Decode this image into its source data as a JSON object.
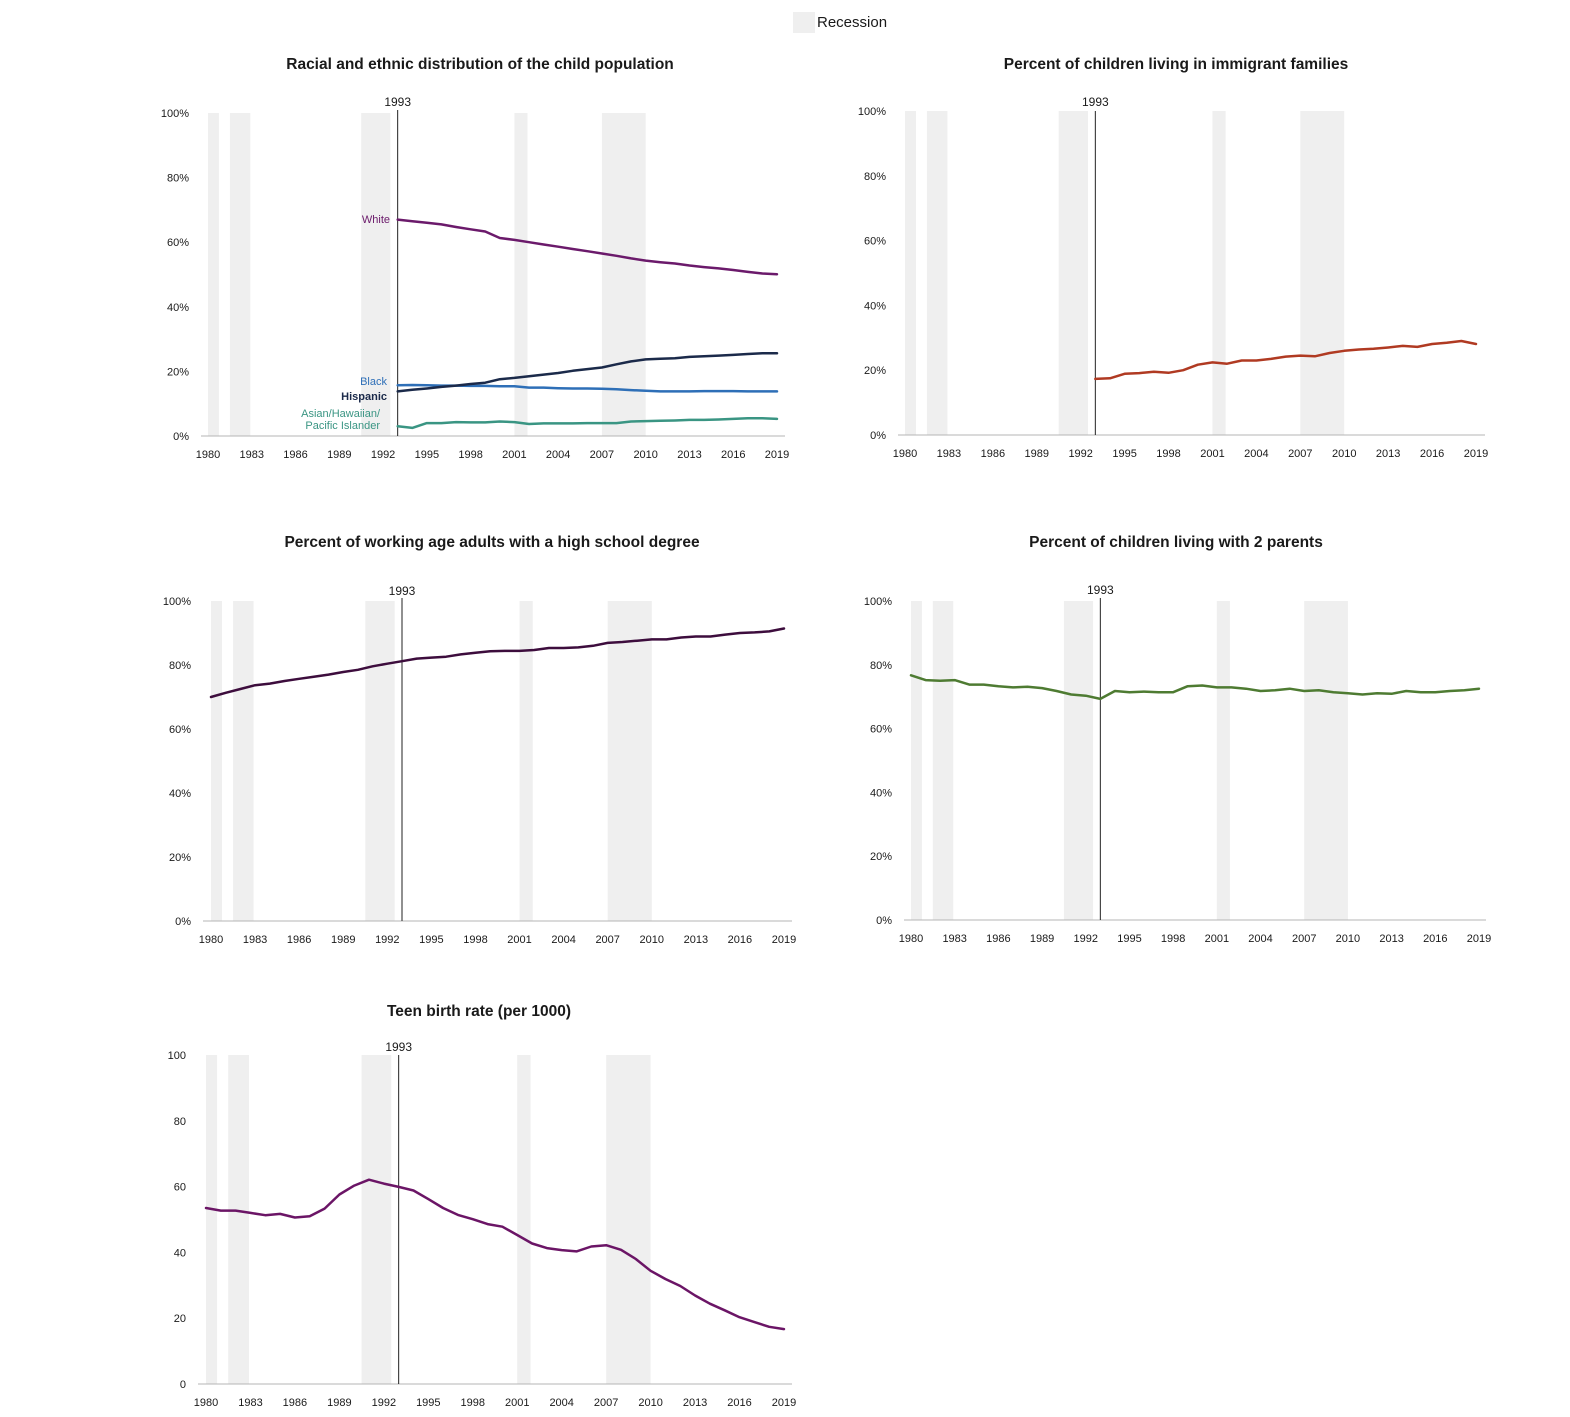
{
  "legend": {
    "recession_label": "Recession"
  },
  "chart_data": [
    {
      "id": "race",
      "type": "line",
      "title": "Racial and ethnic distribution of the child population",
      "ylim": [
        0,
        100
      ],
      "xlim": [
        1980,
        2019
      ],
      "yticks": [
        "0%",
        "20%",
        "40%",
        "60%",
        "80%",
        "100%"
      ],
      "xticks": [
        "1980",
        "1983",
        "1986",
        "1989",
        "1992",
        "1995",
        "1998",
        "2001",
        "2004",
        "2007",
        "2010",
        "2013",
        "2016",
        "2019"
      ],
      "marker": {
        "year": 1993,
        "label": "1993"
      },
      "series": [
        {
          "name": "White",
          "color": "#6b1a6b",
          "x": [
            1993,
            1994,
            1995,
            1996,
            1997,
            1998,
            1999,
            2000,
            2001,
            2002,
            2003,
            2004,
            2005,
            2006,
            2007,
            2008,
            2009,
            2010,
            2011,
            2012,
            2013,
            2014,
            2015,
            2016,
            2017,
            2018,
            2019
          ],
          "values": [
            67.0,
            66.5,
            66.0,
            65.5,
            64.7,
            64.0,
            63.3,
            61.3,
            60.7,
            60.0,
            59.3,
            58.6,
            57.9,
            57.2,
            56.5,
            55.8,
            55.0,
            54.3,
            53.8,
            53.4,
            52.8,
            52.3,
            51.9,
            51.4,
            50.8,
            50.3,
            50.1
          ]
        },
        {
          "name": "Black",
          "color": "#2e6fb7",
          "x": [
            1993,
            1994,
            1995,
            1996,
            1997,
            1998,
            1999,
            2000,
            2001,
            2002,
            2003,
            2004,
            2005,
            2006,
            2007,
            2008,
            2009,
            2010,
            2011,
            2012,
            2013,
            2014,
            2015,
            2016,
            2017,
            2018,
            2019
          ],
          "values": [
            15.7,
            15.8,
            15.7,
            15.6,
            15.6,
            15.5,
            15.5,
            15.4,
            15.4,
            15.0,
            15.0,
            14.8,
            14.7,
            14.7,
            14.6,
            14.5,
            14.2,
            14.0,
            13.8,
            13.8,
            13.8,
            13.9,
            13.9,
            13.9,
            13.8,
            13.8,
            13.8
          ]
        },
        {
          "name": "Hispanic",
          "color": "#1b2a4a",
          "x": [
            1993,
            1994,
            1995,
            1996,
            1997,
            1998,
            1999,
            2000,
            2001,
            2002,
            2003,
            2004,
            2005,
            2006,
            2007,
            2008,
            2009,
            2010,
            2011,
            2012,
            2013,
            2014,
            2015,
            2016,
            2017,
            2018,
            2019
          ],
          "values": [
            13.8,
            14.3,
            14.7,
            15.2,
            15.6,
            16.1,
            16.5,
            17.6,
            18.0,
            18.5,
            19.0,
            19.5,
            20.2,
            20.7,
            21.2,
            22.2,
            23.1,
            23.7,
            23.9,
            24.1,
            24.5,
            24.7,
            24.9,
            25.1,
            25.4,
            25.6,
            25.6
          ]
        },
        {
          "name": "Asian/Hawaiian/ Pacific Islander",
          "label_lines": [
            "Asian/Hawaiian/",
            "Pacific Islander"
          ],
          "color": "#3a9583",
          "x": [
            1993,
            1994,
            1995,
            1996,
            1997,
            1998,
            1999,
            2000,
            2001,
            2002,
            2003,
            2004,
            2005,
            2006,
            2007,
            2008,
            2009,
            2010,
            2011,
            2012,
            2013,
            2014,
            2015,
            2016,
            2017,
            2018,
            2019
          ],
          "values": [
            3.0,
            2.5,
            4.0,
            4.0,
            4.3,
            4.2,
            4.2,
            4.5,
            4.3,
            3.7,
            3.9,
            3.9,
            3.9,
            4.0,
            4.0,
            4.0,
            4.5,
            4.6,
            4.7,
            4.8,
            5.0,
            5.0,
            5.1,
            5.3,
            5.5,
            5.5,
            5.3
          ]
        }
      ]
    },
    {
      "id": "immigrant",
      "type": "line",
      "title": "Percent of children living in immigrant families",
      "ylim": [
        0,
        100
      ],
      "xlim": [
        1980,
        2019
      ],
      "yticks": [
        "0%",
        "20%",
        "40%",
        "60%",
        "80%",
        "100%"
      ],
      "xticks": [
        "1980",
        "1983",
        "1986",
        "1989",
        "1992",
        "1995",
        "1998",
        "2001",
        "2004",
        "2007",
        "2010",
        "2013",
        "2016",
        "2019"
      ],
      "marker": {
        "year": 1993,
        "label": "1993"
      },
      "series": [
        {
          "name": "",
          "color": "#b03a22",
          "x": [
            1993,
            1994,
            1995,
            1996,
            1997,
            1998,
            1999,
            2000,
            2001,
            2002,
            2003,
            2004,
            2005,
            2006,
            2007,
            2008,
            2009,
            2010,
            2011,
            2012,
            2013,
            2014,
            2015,
            2016,
            2017,
            2018,
            2019
          ],
          "values": [
            17.3,
            17.5,
            18.9,
            19.1,
            19.5,
            19.2,
            20.0,
            21.7,
            22.4,
            22.0,
            23.0,
            23.0,
            23.5,
            24.2,
            24.5,
            24.3,
            25.3,
            26.0,
            26.4,
            26.6,
            27.0,
            27.5,
            27.2,
            28.1,
            28.5,
            29.0,
            28.1
          ]
        }
      ]
    },
    {
      "id": "highschool",
      "type": "line",
      "title": "Percent of working age adults with a high school degree",
      "ylim": [
        0,
        100
      ],
      "xlim": [
        1980,
        2019
      ],
      "yticks": [
        "0%",
        "20%",
        "40%",
        "60%",
        "80%",
        "100%"
      ],
      "xticks": [
        "1980",
        "1983",
        "1986",
        "1989",
        "1992",
        "1995",
        "1998",
        "2001",
        "2004",
        "2007",
        "2010",
        "2013",
        "2016",
        "2019"
      ],
      "marker": {
        "year": 1993,
        "label": "1993"
      },
      "series": [
        {
          "name": "",
          "color": "#3d0d3d",
          "x": [
            1980,
            1981,
            1982,
            1983,
            1984,
            1985,
            1986,
            1987,
            1988,
            1989,
            1990,
            1991,
            1992,
            1993,
            1994,
            1995,
            1996,
            1997,
            1998,
            1999,
            2000,
            2001,
            2002,
            2003,
            2004,
            2005,
            2006,
            2007,
            2008,
            2009,
            2010,
            2011,
            2012,
            2013,
            2014,
            2015,
            2016,
            2017,
            2018,
            2019
          ],
          "values": [
            70.0,
            71.3,
            72.5,
            73.7,
            74.2,
            75.0,
            75.7,
            76.3,
            77.0,
            77.8,
            78.5,
            79.6,
            80.4,
            81.2,
            82.0,
            82.3,
            82.6,
            83.3,
            83.8,
            84.3,
            84.4,
            84.4,
            84.7,
            85.3,
            85.3,
            85.5,
            86.0,
            86.9,
            87.2,
            87.6,
            88.0,
            88.0,
            88.6,
            88.9,
            88.9,
            89.5,
            90.0,
            90.2,
            90.5,
            91.4
          ]
        }
      ]
    },
    {
      "id": "twoparents",
      "type": "line",
      "title": "Percent of children living with 2 parents",
      "ylim": [
        0,
        100
      ],
      "xlim": [
        1980,
        2019
      ],
      "yticks": [
        "0%",
        "20%",
        "40%",
        "60%",
        "80%",
        "100%"
      ],
      "xticks": [
        "1980",
        "1983",
        "1986",
        "1989",
        "1992",
        "1995",
        "1998",
        "2001",
        "2004",
        "2007",
        "2010",
        "2013",
        "2016",
        "2019"
      ],
      "marker": {
        "year": 1993,
        "label": "1993"
      },
      "series": [
        {
          "name": "",
          "color": "#4e7b32",
          "x": [
            1980,
            1981,
            1982,
            1983,
            1984,
            1985,
            1986,
            1987,
            1988,
            1989,
            1990,
            1991,
            1992,
            1993,
            1994,
            1995,
            1996,
            1997,
            1998,
            1999,
            2000,
            2001,
            2002,
            2003,
            2004,
            2005,
            2006,
            2007,
            2008,
            2009,
            2010,
            2011,
            2012,
            2013,
            2014,
            2015,
            2016,
            2017,
            2018,
            2019
          ],
          "values": [
            76.7,
            75.2,
            75.0,
            75.2,
            73.8,
            73.8,
            73.3,
            72.9,
            73.1,
            72.7,
            71.8,
            70.7,
            70.3,
            69.3,
            71.8,
            71.4,
            71.6,
            71.4,
            71.4,
            73.3,
            73.5,
            72.9,
            72.9,
            72.5,
            71.8,
            72.0,
            72.5,
            71.8,
            72.0,
            71.4,
            71.1,
            70.7,
            71.1,
            70.9,
            71.8,
            71.4,
            71.4,
            71.8,
            72.0,
            72.5
          ]
        }
      ]
    },
    {
      "id": "teenbirth",
      "type": "line",
      "title": "Teen birth rate (per 1000)",
      "ylim": [
        0,
        100
      ],
      "xlim": [
        1980,
        2019
      ],
      "yticks": [
        "0",
        "20",
        "40",
        "60",
        "80",
        "100"
      ],
      "xticks": [
        "1980",
        "1983",
        "1986",
        "1989",
        "1992",
        "1995",
        "1998",
        "2001",
        "2004",
        "2007",
        "2010",
        "2013",
        "2016",
        "2019"
      ],
      "marker": {
        "year": 1993,
        "label": "1993"
      },
      "series": [
        {
          "name": "",
          "color": "#6b1566",
          "x": [
            1980,
            1981,
            1982,
            1983,
            1984,
            1985,
            1986,
            1987,
            1988,
            1989,
            1990,
            1991,
            1992,
            1993,
            1994,
            1995,
            1996,
            1997,
            1998,
            1999,
            2000,
            2001,
            2002,
            2003,
            2004,
            2005,
            2006,
            2007,
            2008,
            2009,
            2010,
            2011,
            2012,
            2013,
            2014,
            2015,
            2016,
            2017,
            2018,
            2019
          ],
          "values": [
            53.5,
            52.7,
            52.7,
            52.0,
            51.3,
            51.7,
            50.6,
            51.0,
            53.3,
            57.6,
            60.3,
            62.1,
            60.9,
            59.9,
            58.8,
            56.2,
            53.5,
            51.4,
            50.1,
            48.6,
            47.8,
            45.3,
            42.7,
            41.3,
            40.7,
            40.3,
            41.8,
            42.2,
            40.8,
            38.0,
            34.4,
            31.9,
            29.8,
            26.9,
            24.4,
            22.4,
            20.3,
            18.8,
            17.4,
            16.7
          ]
        }
      ]
    }
  ],
  "recessions": [
    [
      1980.0,
      1980.75
    ],
    [
      1981.5,
      1982.9
    ],
    [
      1990.5,
      1992.5
    ],
    [
      2001.0,
      2001.9
    ],
    [
      2007.0,
      2010.0
    ]
  ]
}
